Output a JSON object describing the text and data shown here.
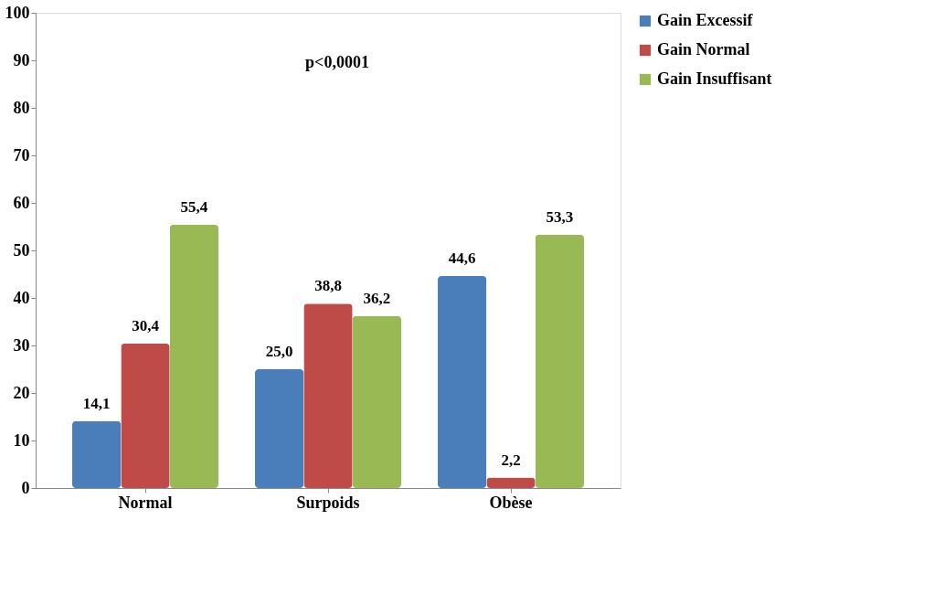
{
  "chart_data": {
    "type": "bar",
    "categories": [
      "Normal",
      "Surpoids",
      "Obèse"
    ],
    "series": [
      {
        "name": "Gain Excessif",
        "color": "#4a7ebb",
        "values": [
          14.1,
          25.0,
          44.6
        ],
        "value_labels": [
          "14,1",
          "25,0",
          "44,6"
        ]
      },
      {
        "name": "Gain Normal",
        "color": "#be4b48",
        "values": [
          30.4,
          38.8,
          2.2
        ],
        "value_labels": [
          "30,4",
          "38,8",
          "2,2"
        ]
      },
      {
        "name": "Gain Insuffisant",
        "color": "#98b954",
        "values": [
          55.4,
          36.2,
          53.3
        ],
        "value_labels": [
          "55,4",
          "36,2",
          "53,3"
        ]
      }
    ],
    "ylim": [
      0,
      100
    ],
    "yticks": [
      0,
      10,
      20,
      30,
      40,
      50,
      60,
      70,
      80,
      90,
      100
    ],
    "annotations": [
      "p<0,0001"
    ],
    "grid": false,
    "legend": "right"
  }
}
